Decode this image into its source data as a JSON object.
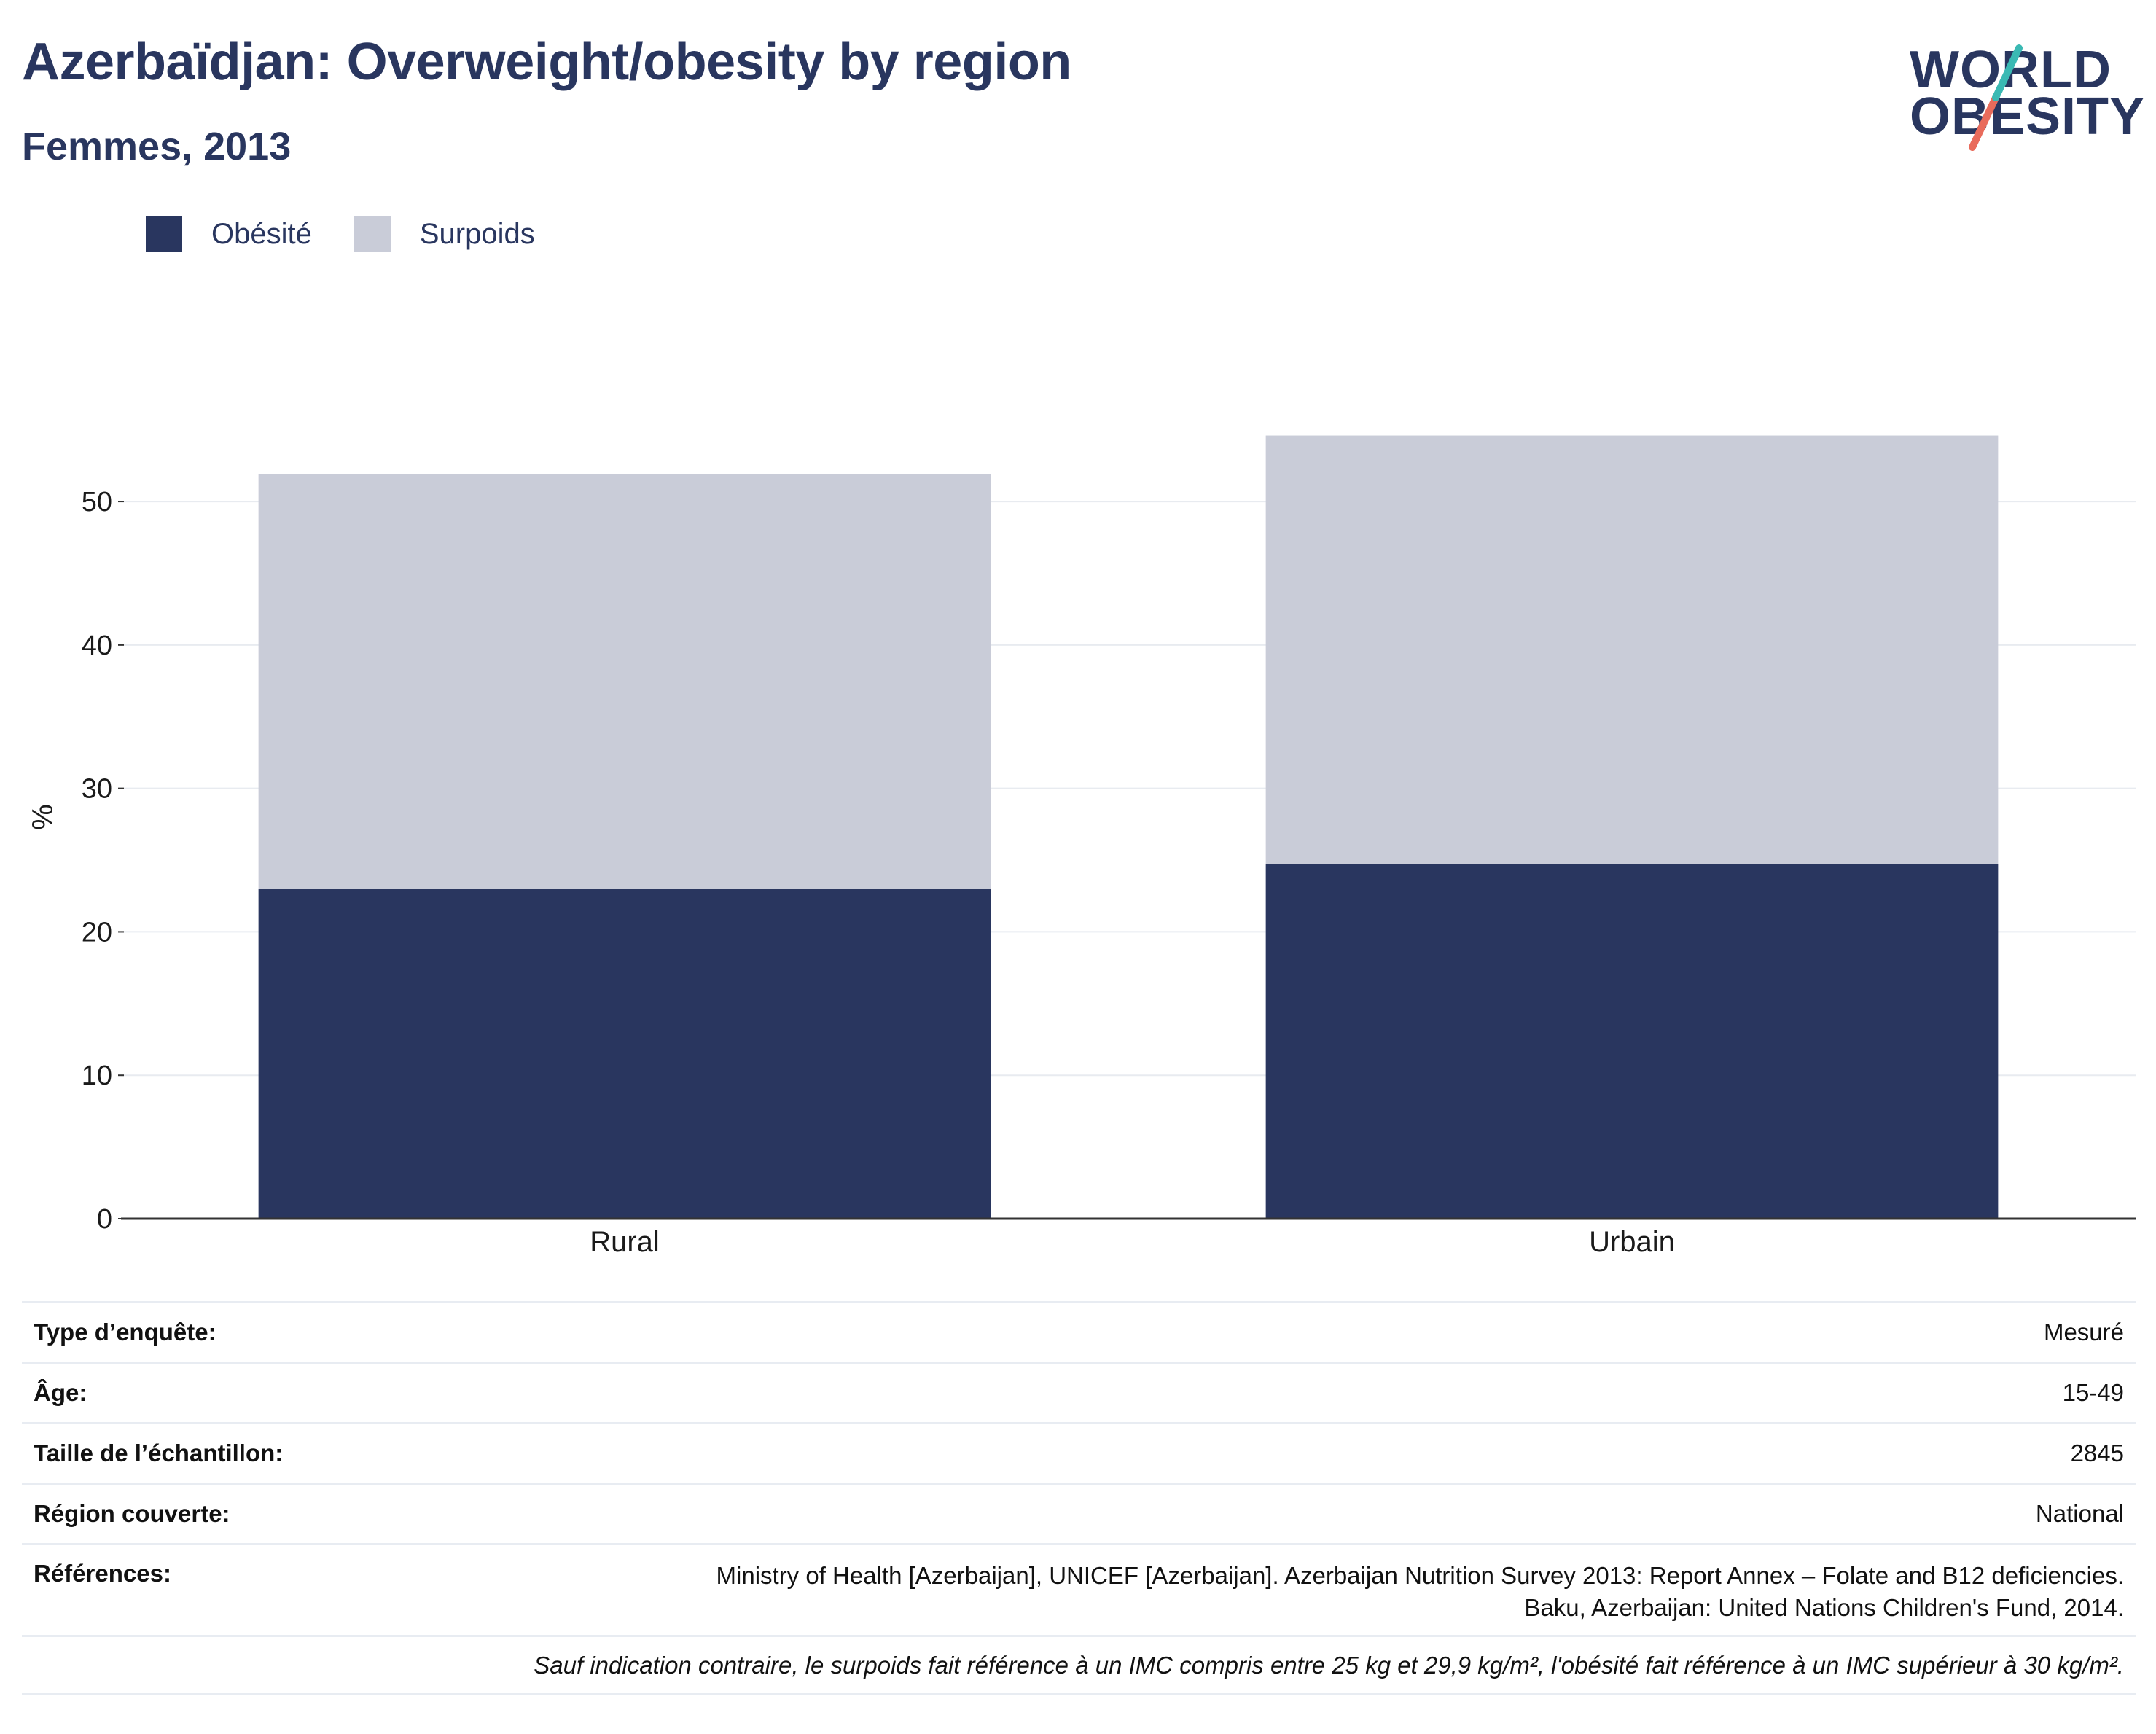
{
  "header": {
    "title": "Azerbaïdjan: Overweight/obesity by region",
    "subtitle": "Femmes, 2013"
  },
  "logo": {
    "line1": "WORLD",
    "line2": "OBESITY"
  },
  "colors": {
    "obesity": "#29365f",
    "overweight": "#c9ccd8",
    "text": "#29365f",
    "accent_teal": "#3ab9b3",
    "accent_coral": "#e96b5b"
  },
  "chart_data": {
    "type": "bar",
    "stacked": true,
    "categories": [
      "Rural",
      "Urbain"
    ],
    "series": [
      {
        "name": "Obésité",
        "values": [
          23.0,
          24.7
        ]
      },
      {
        "name": "Surpoids",
        "values": [
          28.9,
          29.9
        ]
      }
    ],
    "ylabel": "%",
    "ylim": [
      0,
      56
    ],
    "yticks": [
      0,
      10,
      20,
      30,
      40,
      50
    ],
    "grid": true,
    "legend": "top-left"
  },
  "info": {
    "rows": [
      {
        "key": "Type d’enquête:",
        "value": "Mesuré"
      },
      {
        "key": "Âge:",
        "value": "15-49"
      },
      {
        "key": "Taille de l’échantillon:",
        "value": "2845"
      },
      {
        "key": "Région couverte:",
        "value": "National"
      }
    ],
    "references_key": "Références:",
    "references_line1": "Ministry of Health [Azerbaijan], UNICEF [Azerbaijan]. Azerbaijan Nutrition Survey 2013: Report Annex – Folate and B12 deficiencies.",
    "references_line2": "Baku, Azerbaijan: United Nations Children's Fund, 2014.",
    "note": "Sauf indication contraire, le surpoids fait référence à un IMC compris entre 25 kg et 29,9 kg/m², l'obésité fait référence à un IMC supérieur à 30 kg/m²."
  }
}
